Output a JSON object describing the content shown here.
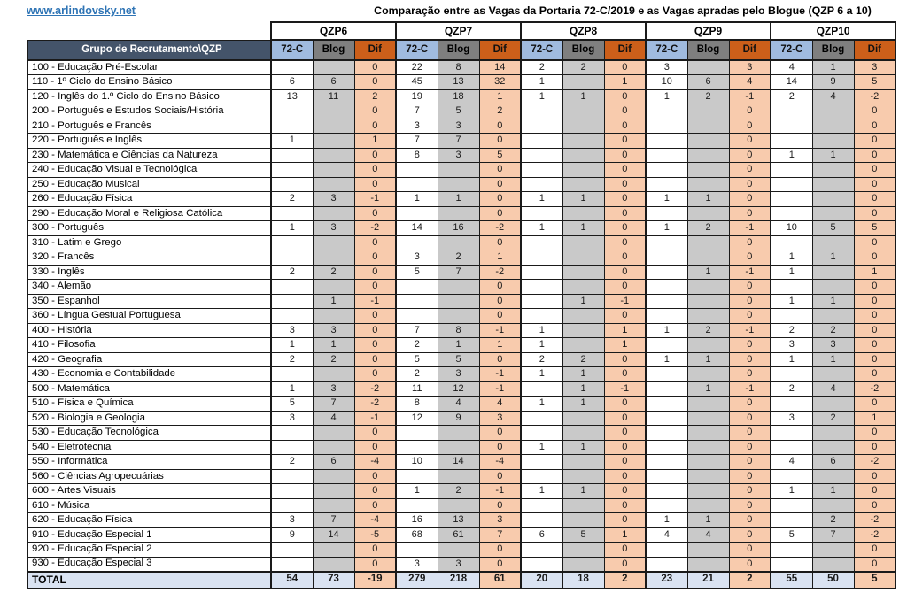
{
  "header": {
    "link": "www.arlindovsky.net",
    "title": "Comparação entre as Vagas da Portaria 72-C/2019 e as Vagas apradas pelo Blogue (QZP 6 a 10)"
  },
  "table": {
    "corner_header": "Grupo de Recrutamento\\QZP",
    "groups": [
      "QZP6",
      "QZP7",
      "QZP8",
      "QZP9",
      "QZP10"
    ],
    "sub_headers": [
      "72-C",
      "Blog",
      "Dif"
    ],
    "total_label": "TOTAL",
    "rows": [
      {
        "label": "100 - Educação Pré-Escolar",
        "values": [
          "",
          "",
          "0",
          "22",
          "8",
          "14",
          "2",
          "2",
          "0",
          "3",
          "",
          "3",
          "4",
          "1",
          "3"
        ]
      },
      {
        "label": "110 - 1º Ciclo do Ensino Básico",
        "values": [
          "6",
          "6",
          "0",
          "45",
          "13",
          "32",
          "1",
          "",
          "1",
          "10",
          "6",
          "4",
          "14",
          "9",
          "5"
        ]
      },
      {
        "label": "120 - Inglês do 1.º Ciclo do Ensino Básico",
        "values": [
          "13",
          "11",
          "2",
          "19",
          "18",
          "1",
          "1",
          "1",
          "0",
          "1",
          "2",
          "-1",
          "2",
          "4",
          "-2"
        ]
      },
      {
        "label": "200 - Português e Estudos Sociais/História",
        "values": [
          "",
          "",
          "0",
          "7",
          "5",
          "2",
          "",
          "",
          "0",
          "",
          "",
          "0",
          "",
          "",
          "0"
        ]
      },
      {
        "label": "210 - Português e Francês",
        "values": [
          "",
          "",
          "0",
          "3",
          "3",
          "0",
          "",
          "",
          "0",
          "",
          "",
          "0",
          "",
          "",
          "0"
        ]
      },
      {
        "label": "220 - Português e Inglês",
        "values": [
          "1",
          "",
          "1",
          "7",
          "7",
          "0",
          "",
          "",
          "0",
          "",
          "",
          "0",
          "",
          "",
          "0"
        ]
      },
      {
        "label": "230 - Matemática e Ciências da Natureza",
        "values": [
          "",
          "",
          "0",
          "8",
          "3",
          "5",
          "",
          "",
          "0",
          "",
          "",
          "0",
          "1",
          "1",
          "0"
        ]
      },
      {
        "label": "240 - Educação Visual e Tecnológica",
        "values": [
          "",
          "",
          "0",
          "",
          "",
          "0",
          "",
          "",
          "0",
          "",
          "",
          "0",
          "",
          "",
          "0"
        ]
      },
      {
        "label": "250 - Educação Musical",
        "values": [
          "",
          "",
          "0",
          "",
          "",
          "0",
          "",
          "",
          "0",
          "",
          "",
          "0",
          "",
          "",
          "0"
        ]
      },
      {
        "label": "260 - Educação Física",
        "values": [
          "2",
          "3",
          "-1",
          "1",
          "1",
          "0",
          "1",
          "1",
          "0",
          "1",
          "1",
          "0",
          "",
          "",
          "0"
        ]
      },
      {
        "label": "290 - Educação Moral e Religiosa Católica",
        "values": [
          "",
          "",
          "0",
          "",
          "",
          "0",
          "",
          "",
          "0",
          "",
          "",
          "0",
          "",
          "",
          "0"
        ]
      },
      {
        "label": "300 - Português",
        "values": [
          "1",
          "3",
          "-2",
          "14",
          "16",
          "-2",
          "1",
          "1",
          "0",
          "1",
          "2",
          "-1",
          "10",
          "5",
          "5"
        ]
      },
      {
        "label": "310 - Latim e Grego",
        "values": [
          "",
          "",
          "0",
          "",
          "",
          "0",
          "",
          "",
          "0",
          "",
          "",
          "0",
          "",
          "",
          "0"
        ]
      },
      {
        "label": "320 - Francês",
        "values": [
          "",
          "",
          "0",
          "3",
          "2",
          "1",
          "",
          "",
          "0",
          "",
          "",
          "0",
          "1",
          "1",
          "0"
        ]
      },
      {
        "label": "330 - Inglês",
        "values": [
          "2",
          "2",
          "0",
          "5",
          "7",
          "-2",
          "",
          "",
          "0",
          "",
          "1",
          "-1",
          "1",
          "",
          "1"
        ]
      },
      {
        "label": "340 - Alemão",
        "values": [
          "",
          "",
          "0",
          "",
          "",
          "0",
          "",
          "",
          "0",
          "",
          "",
          "0",
          "",
          "",
          "0"
        ]
      },
      {
        "label": "350 - Espanhol",
        "values": [
          "",
          "1",
          "-1",
          "",
          "",
          "0",
          "",
          "1",
          "-1",
          "",
          "",
          "0",
          "1",
          "1",
          "0"
        ]
      },
      {
        "label": "360 - Língua Gestual Portuguesa",
        "values": [
          "",
          "",
          "0",
          "",
          "",
          "0",
          "",
          "",
          "0",
          "",
          "",
          "0",
          "",
          "",
          "0"
        ]
      },
      {
        "label": "400 - História",
        "values": [
          "3",
          "3",
          "0",
          "7",
          "8",
          "-1",
          "1",
          "",
          "1",
          "1",
          "2",
          "-1",
          "2",
          "2",
          "0"
        ]
      },
      {
        "label": "410 - Filosofia",
        "values": [
          "1",
          "1",
          "0",
          "2",
          "1",
          "1",
          "1",
          "",
          "1",
          "",
          "",
          "0",
          "3",
          "3",
          "0"
        ]
      },
      {
        "label": "420 - Geografia",
        "values": [
          "2",
          "2",
          "0",
          "5",
          "5",
          "0",
          "2",
          "2",
          "0",
          "1",
          "1",
          "0",
          "1",
          "1",
          "0"
        ]
      },
      {
        "label": "430 - Economia e Contabilidade",
        "values": [
          "",
          "",
          "0",
          "2",
          "3",
          "-1",
          "1",
          "1",
          "0",
          "",
          "",
          "0",
          "",
          "",
          "0"
        ]
      },
      {
        "label": "500 - Matemática",
        "values": [
          "1",
          "3",
          "-2",
          "11",
          "12",
          "-1",
          "",
          "1",
          "-1",
          "",
          "1",
          "-1",
          "2",
          "4",
          "-2"
        ]
      },
      {
        "label": "510 - Física e Química",
        "values": [
          "5",
          "7",
          "-2",
          "8",
          "4",
          "4",
          "1",
          "1",
          "0",
          "",
          "",
          "0",
          "",
          "",
          "0"
        ]
      },
      {
        "label": "520 - Biologia e Geologia",
        "values": [
          "3",
          "4",
          "-1",
          "12",
          "9",
          "3",
          "",
          "",
          "0",
          "",
          "",
          "0",
          "3",
          "2",
          "1"
        ]
      },
      {
        "label": "530 - Educação Tecnológica",
        "values": [
          "",
          "",
          "0",
          "",
          "",
          "0",
          "",
          "",
          "0",
          "",
          "",
          "0",
          "",
          "",
          "0"
        ]
      },
      {
        "label": "540 - Eletrotecnia",
        "values": [
          "",
          "",
          "0",
          "",
          "",
          "0",
          "1",
          "1",
          "0",
          "",
          "",
          "0",
          "",
          "",
          "0"
        ]
      },
      {
        "label": "550 - Informática",
        "values": [
          "2",
          "6",
          "-4",
          "10",
          "14",
          "-4",
          "",
          "",
          "0",
          "",
          "",
          "0",
          "4",
          "6",
          "-2"
        ]
      },
      {
        "label": "560 - Ciências Agropecuárias",
        "values": [
          "",
          "",
          "0",
          "",
          "",
          "0",
          "",
          "",
          "0",
          "",
          "",
          "0",
          "",
          "",
          "0"
        ]
      },
      {
        "label": "600 - Artes Visuais",
        "values": [
          "",
          "",
          "0",
          "1",
          "2",
          "-1",
          "1",
          "1",
          "0",
          "",
          "",
          "0",
          "1",
          "1",
          "0"
        ]
      },
      {
        "label": "610 - Música",
        "values": [
          "",
          "",
          "0",
          "",
          "",
          "0",
          "",
          "",
          "0",
          "",
          "",
          "0",
          "",
          "",
          "0"
        ]
      },
      {
        "label": "620 - Educação Física",
        "values": [
          "3",
          "7",
          "-4",
          "16",
          "13",
          "3",
          "",
          "",
          "0",
          "1",
          "1",
          "0",
          "",
          "2",
          "-2"
        ]
      },
      {
        "label": "910 - Educação Especial 1",
        "values": [
          "9",
          "14",
          "-5",
          "68",
          "61",
          "7",
          "6",
          "5",
          "1",
          "4",
          "4",
          "0",
          "5",
          "7",
          "-2"
        ]
      },
      {
        "label": "920 - Educação Especial 2",
        "values": [
          "",
          "",
          "0",
          "",
          "",
          "0",
          "",
          "",
          "0",
          "",
          "",
          "0",
          "",
          "",
          "0"
        ]
      },
      {
        "label": "930 - Educação Especial 3",
        "values": [
          "",
          "",
          "0",
          "3",
          "3",
          "0",
          "",
          "",
          "0",
          "",
          "",
          "0",
          "",
          "",
          "0"
        ]
      }
    ],
    "totals": [
      "54",
      "73",
      "-19",
      "279",
      "218",
      "61",
      "20",
      "18",
      "2",
      "23",
      "21",
      "2",
      "55",
      "50",
      "5"
    ]
  },
  "colors": {
    "header_dark": "#44546A",
    "col_72c": "#A0BBDF",
    "col_blog": "#7F7F7F",
    "col_dif": "#CC5F1A",
    "cell_blog": "#C9C9C9",
    "cell_dif": "#F8CBAD",
    "total_bg": "#DAE3F2",
    "link": "#2E74B5",
    "grid": "#1A1A1A"
  }
}
